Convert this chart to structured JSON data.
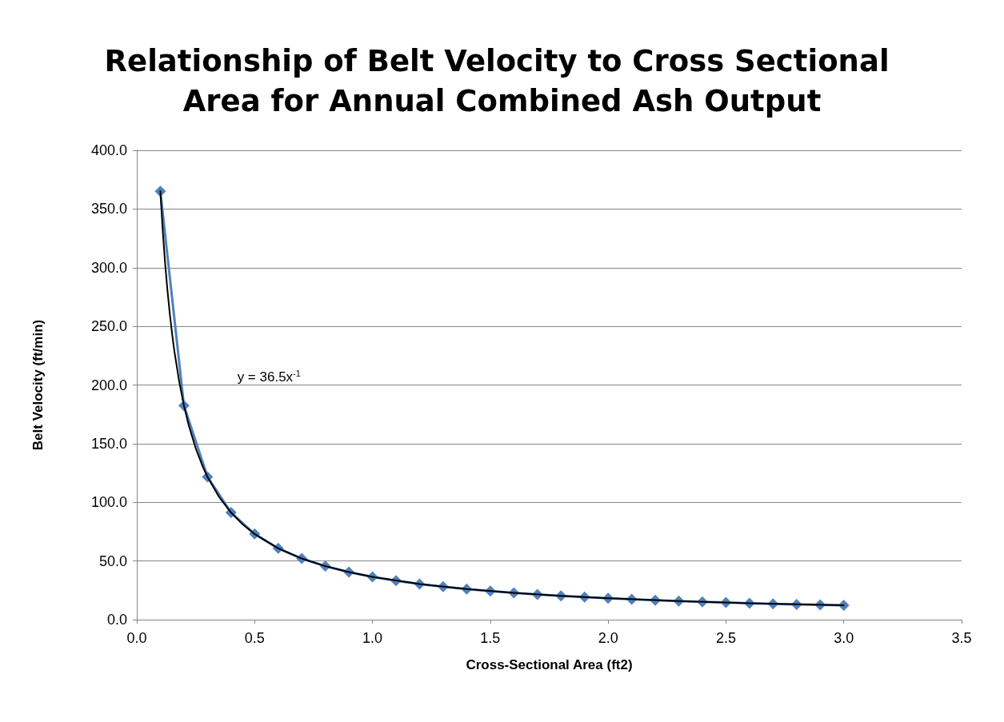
{
  "chart_data": {
    "type": "line",
    "title": "Relationship of Belt Velocity to Cross Sectional Area for Annual Combined Ash Output",
    "xlabel": "Cross-Sectional Area (ft2)",
    "ylabel": "Belt Velocity (ft/min)",
    "x": [
      0.1,
      0.2,
      0.3,
      0.4,
      0.5,
      0.6,
      0.7,
      0.8,
      0.9,
      1.0,
      1.1,
      1.2,
      1.3,
      1.4,
      1.5,
      1.6,
      1.7,
      1.8,
      1.9,
      2.0,
      2.1,
      2.2,
      2.3,
      2.4,
      2.5,
      2.6,
      2.7,
      2.8,
      2.9,
      3.0
    ],
    "series": [
      {
        "color": "#4f81bd",
        "marker": "diamond",
        "values": [
          365,
          182.5,
          121.7,
          91.3,
          73,
          60.8,
          52.1,
          45.6,
          40.6,
          36.5,
          33.2,
          30.4,
          28.1,
          26.1,
          24.3,
          22.8,
          21.5,
          20.3,
          19.2,
          18.3,
          17.4,
          16.6,
          15.9,
          15.2,
          14.6,
          14.0,
          13.5,
          13.0,
          12.6,
          12.2
        ]
      },
      {
        "type": "line",
        "color": "#000000",
        "marker": "none",
        "x": [
          0.1,
          0.11,
          0.12,
          0.13,
          0.14,
          0.15,
          0.16,
          0.18,
          0.2,
          0.22,
          0.25,
          0.28,
          0.3,
          0.35,
          0.4,
          0.45,
          0.5,
          0.6,
          0.7,
          0.8,
          0.9,
          1.0,
          1.2,
          1.4,
          1.6,
          1.8,
          2.0,
          2.3,
          2.6,
          3.0
        ],
        "values": [
          365,
          331.8,
          304.2,
          280.8,
          260.7,
          243.3,
          228.1,
          202.8,
          182.5,
          165.9,
          146,
          130.4,
          121.7,
          104.3,
          91.3,
          81.1,
          73,
          60.8,
          52.1,
          45.6,
          40.6,
          36.5,
          30.4,
          26.1,
          22.8,
          20.3,
          18.3,
          15.9,
          14.0,
          12.2
        ]
      }
    ],
    "annotations": [
      "y = 36.5x$^{-1}$"
    ],
    "xlim": [
      0,
      3.5
    ],
    "xticks": [
      {
        "value": 0,
        "label": "0.0"
      },
      {
        "value": 0.5,
        "label": "0.5"
      },
      {
        "value": 1,
        "label": "1.0"
      },
      {
        "value": 1.5,
        "label": "1.5"
      },
      {
        "value": 2,
        "label": "2.0"
      },
      {
        "value": 2.5,
        "label": "2.5"
      },
      {
        "value": 3,
        "label": "3.0"
      },
      {
        "value": 3.5,
        "label": "3.5"
      }
    ],
    "ylim": [
      0,
      400
    ],
    "yticks": [
      {
        "value": 0,
        "label": "0.0"
      },
      {
        "value": 50,
        "label": "50.0"
      },
      {
        "value": 100,
        "label": "100.0"
      },
      {
        "value": 150,
        "label": "150.0"
      },
      {
        "value": 200,
        "label": "200.0"
      },
      {
        "value": 250,
        "label": "250.0"
      },
      {
        "value": 300,
        "label": "300.0"
      },
      {
        "value": 350,
        "label": "350.0"
      },
      {
        "value": 400,
        "label": "400.0"
      }
    ],
    "grid": "y",
    "line_style": "solid"
  }
}
